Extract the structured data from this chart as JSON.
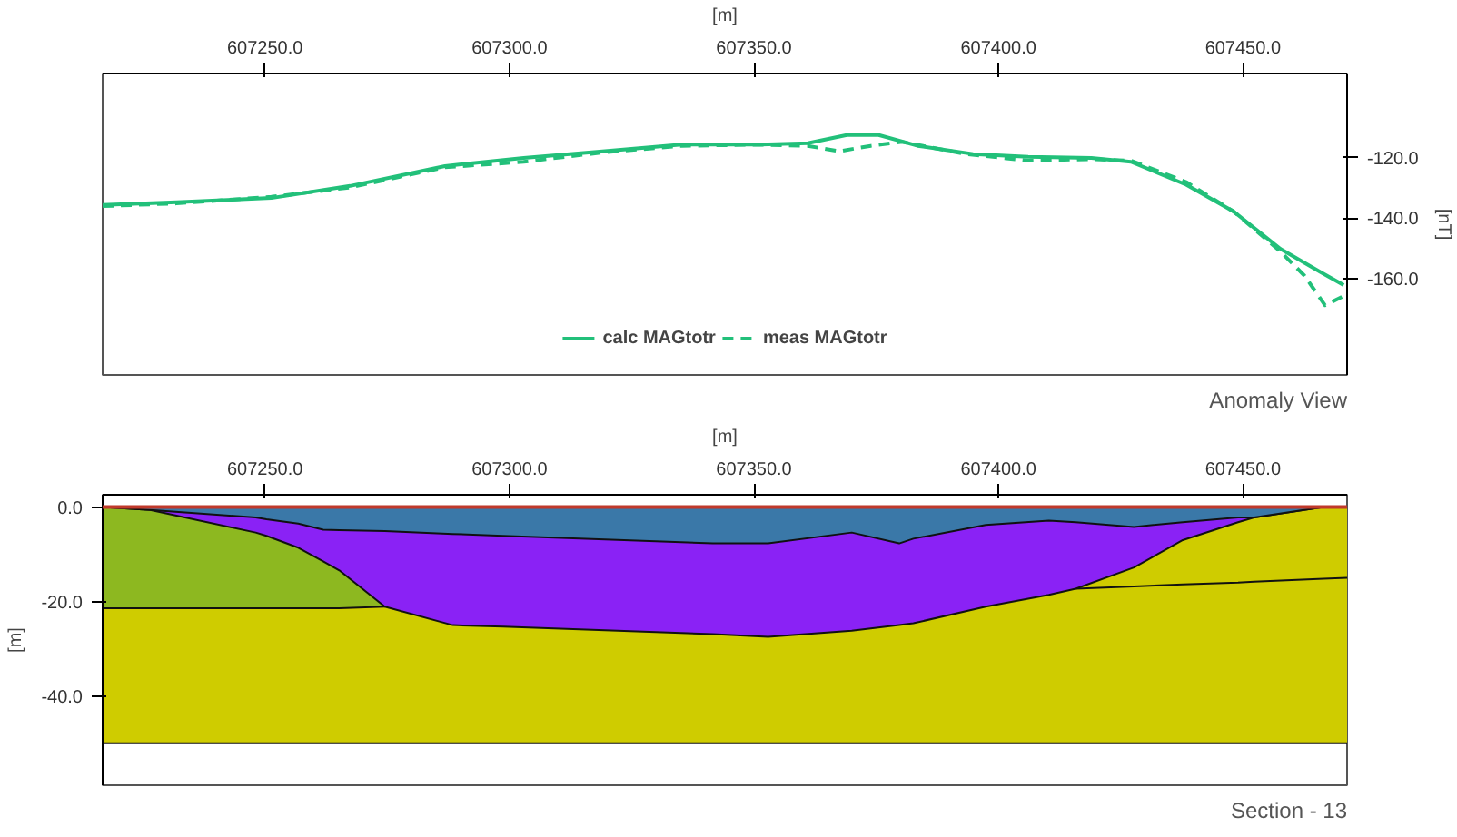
{
  "chart_data": [
    {
      "type": "line",
      "title": "Anomaly View",
      "xlabel": "[m]",
      "ylabel": "[nT]",
      "xlim": [
        607216.8,
        607471.3
      ],
      "ylim": [
        -192,
        -92
      ],
      "xticks": [
        {
          "value": 607250,
          "label": "607250.0"
        },
        {
          "value": 607300,
          "label": "607300.0"
        },
        {
          "value": 607350,
          "label": "607350.0"
        },
        {
          "value": 607400,
          "label": "607400.0"
        },
        {
          "value": 607450,
          "label": "607450.0"
        }
      ],
      "yticks": [
        {
          "value": -120,
          "label": "-120.0"
        },
        {
          "value": -140,
          "label": "-140.0"
        },
        {
          "value": -160,
          "label": "-160.0"
        }
      ],
      "grid": false,
      "legend": "bottom",
      "series": [
        {
          "name": "calc MAGtotr",
          "color": "#22c07a",
          "line_style": "solid",
          "x": [
            607216.8,
            607231.9,
            607251.3,
            607267.4,
            607286.8,
            607302.9,
            607319.0,
            607335.2,
            607351.3,
            607361.0,
            607369.0,
            607375.5,
            607383.5,
            607394.8,
            607406.1,
            607419.0,
            607427.1,
            607438.4,
            607448.1,
            607457.7,
            607465.8,
            607470.6
          ],
          "values": [
            -135.6,
            -134.7,
            -133.3,
            -129.3,
            -122.7,
            -120,
            -117.8,
            -115.6,
            -115.6,
            -115.1,
            -112.4,
            -112.4,
            -116,
            -118.7,
            -119.6,
            -120,
            -121.3,
            -128.9,
            -137.8,
            -150.2,
            -157.8,
            -162.2
          ]
        },
        {
          "name": "meas MAGtotr",
          "color": "#22c07a",
          "line_style": "dashed",
          "x": [
            607216.8,
            607231.9,
            607251.3,
            607267.4,
            607286.8,
            607302.9,
            607319.0,
            607335.2,
            607351.3,
            607361.0,
            607367.4,
            607373.9,
            607380.3,
            607393.2,
            607406.1,
            607419.0,
            607427.1,
            607438.4,
            607448.1,
            607457.7,
            607462.6,
            607466.8,
            607470.6
          ],
          "values": [
            -136,
            -135.1,
            -132.9,
            -129.8,
            -123.1,
            -121.3,
            -118.2,
            -116,
            -115.6,
            -116,
            -117.8,
            -116,
            -114.7,
            -118.7,
            -120.9,
            -120.4,
            -120.9,
            -128,
            -137.8,
            -151.1,
            -159.1,
            -168.9,
            -165.8
          ]
        }
      ]
    },
    {
      "type": "area",
      "title": "Section - 13",
      "xlabel": "[m]",
      "ylabel": "[m]",
      "xlim": [
        607216.8,
        607471.3
      ],
      "ylim": [
        -58.9,
        2.6
      ],
      "xticks": [
        {
          "value": 607250,
          "label": "607250.0"
        },
        {
          "value": 607300,
          "label": "607300.0"
        },
        {
          "value": 607350,
          "label": "607350.0"
        },
        {
          "value": 607400,
          "label": "607400.0"
        },
        {
          "value": 607450,
          "label": "607450.0"
        }
      ],
      "yticks": [
        {
          "value": 0,
          "label": "0.0"
        },
        {
          "value": -20,
          "label": "-20.0"
        },
        {
          "value": -40,
          "label": "-40.0"
        }
      ],
      "grid": false,
      "ref_lines": [
        {
          "axis": "y",
          "value": 0,
          "color": "#c0392b"
        }
      ],
      "x": [
        607216.8,
        607226.5,
        607248.1,
        607250.3,
        607256.8,
        607261.9,
        607265.2,
        607274.5,
        607288.4,
        607298.7,
        607341.6,
        607352.9,
        607370.0,
        607379.7,
        607382.6,
        607397.4,
        607410.3,
        607415.8,
        607427.7,
        607437.7,
        607449.0,
        607452.3,
        607466.5,
        607471.3
      ],
      "series": [
        {
          "color": "#cfcc00",
          "values": [
            -50,
            -50,
            -50,
            -50,
            -50,
            -50,
            -50,
            -50,
            -50,
            -50,
            -50,
            -50,
            -50,
            -50,
            -50,
            -50,
            -50,
            -50,
            -50,
            -50,
            -50,
            -50,
            -50,
            -50
          ]
        },
        {
          "color": "#8db820",
          "values": [
            -21.4,
            -21.4,
            -21.4,
            -21.4,
            -21.4,
            -21.4,
            -21.4,
            -21.1,
            null,
            null,
            null,
            null,
            null,
            null,
            null,
            null,
            null,
            null,
            null,
            null,
            null,
            null,
            null,
            null
          ]
        },
        {
          "type": "line",
          "color": "#111111",
          "values": [
            null,
            null,
            null,
            null,
            null,
            null,
            null,
            null,
            null,
            null,
            null,
            null,
            null,
            null,
            null,
            null,
            null,
            -17.3,
            -16.8,
            -16.4,
            -16,
            -15.8,
            -15.2,
            -15
          ]
        },
        {
          "color": "#8a22f5",
          "values": [
            0,
            -0.6,
            -5.4,
            -6.1,
            -8.6,
            -11.5,
            -13.4,
            -21.1,
            -25,
            -25.3,
            -26.9,
            -27.5,
            -26.2,
            -25,
            -24.6,
            -21.1,
            -18.6,
            -17.3,
            -12.8,
            -7,
            -3.2,
            -2.2,
            0,
            0
          ]
        },
        {
          "color": "#3a78a8",
          "values": [
            0,
            -0.6,
            -2.2,
            -2.6,
            -3.5,
            -4.8,
            -4.9,
            -5.1,
            -5.7,
            -6.1,
            -7.7,
            -7.7,
            -5.4,
            -7.7,
            -6.7,
            -3.8,
            -2.9,
            -3.2,
            -4.2,
            -3.2,
            -2.2,
            -2.2,
            0,
            0
          ]
        }
      ]
    }
  ]
}
